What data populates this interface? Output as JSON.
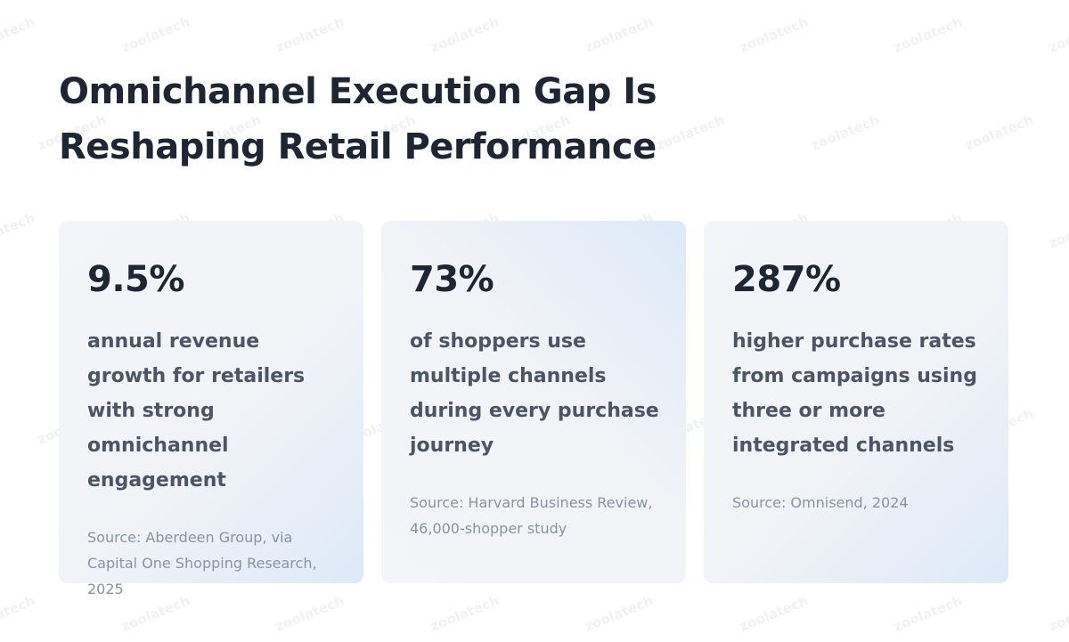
{
  "title": "Omnichannel Execution Gap Is Reshaping Retail Performance",
  "watermark": "zoolatech",
  "cards": [
    {
      "stat": "9.5%",
      "description": "annual revenue growth for retailers with strong omnichannel engagement",
      "source": "Source: Aberdeen Group, via Capital One Shopping Research, 2025"
    },
    {
      "stat": "73%",
      "description": "of shoppers use multiple channels during every purchase journey",
      "source": "Source: Harvard Business Review, 46,000-shopper study"
    },
    {
      "stat": "287%",
      "description": "higher purchase rates from campaigns using three or more integrated channels",
      "source": "Source: Omnisend, 2024"
    }
  ]
}
